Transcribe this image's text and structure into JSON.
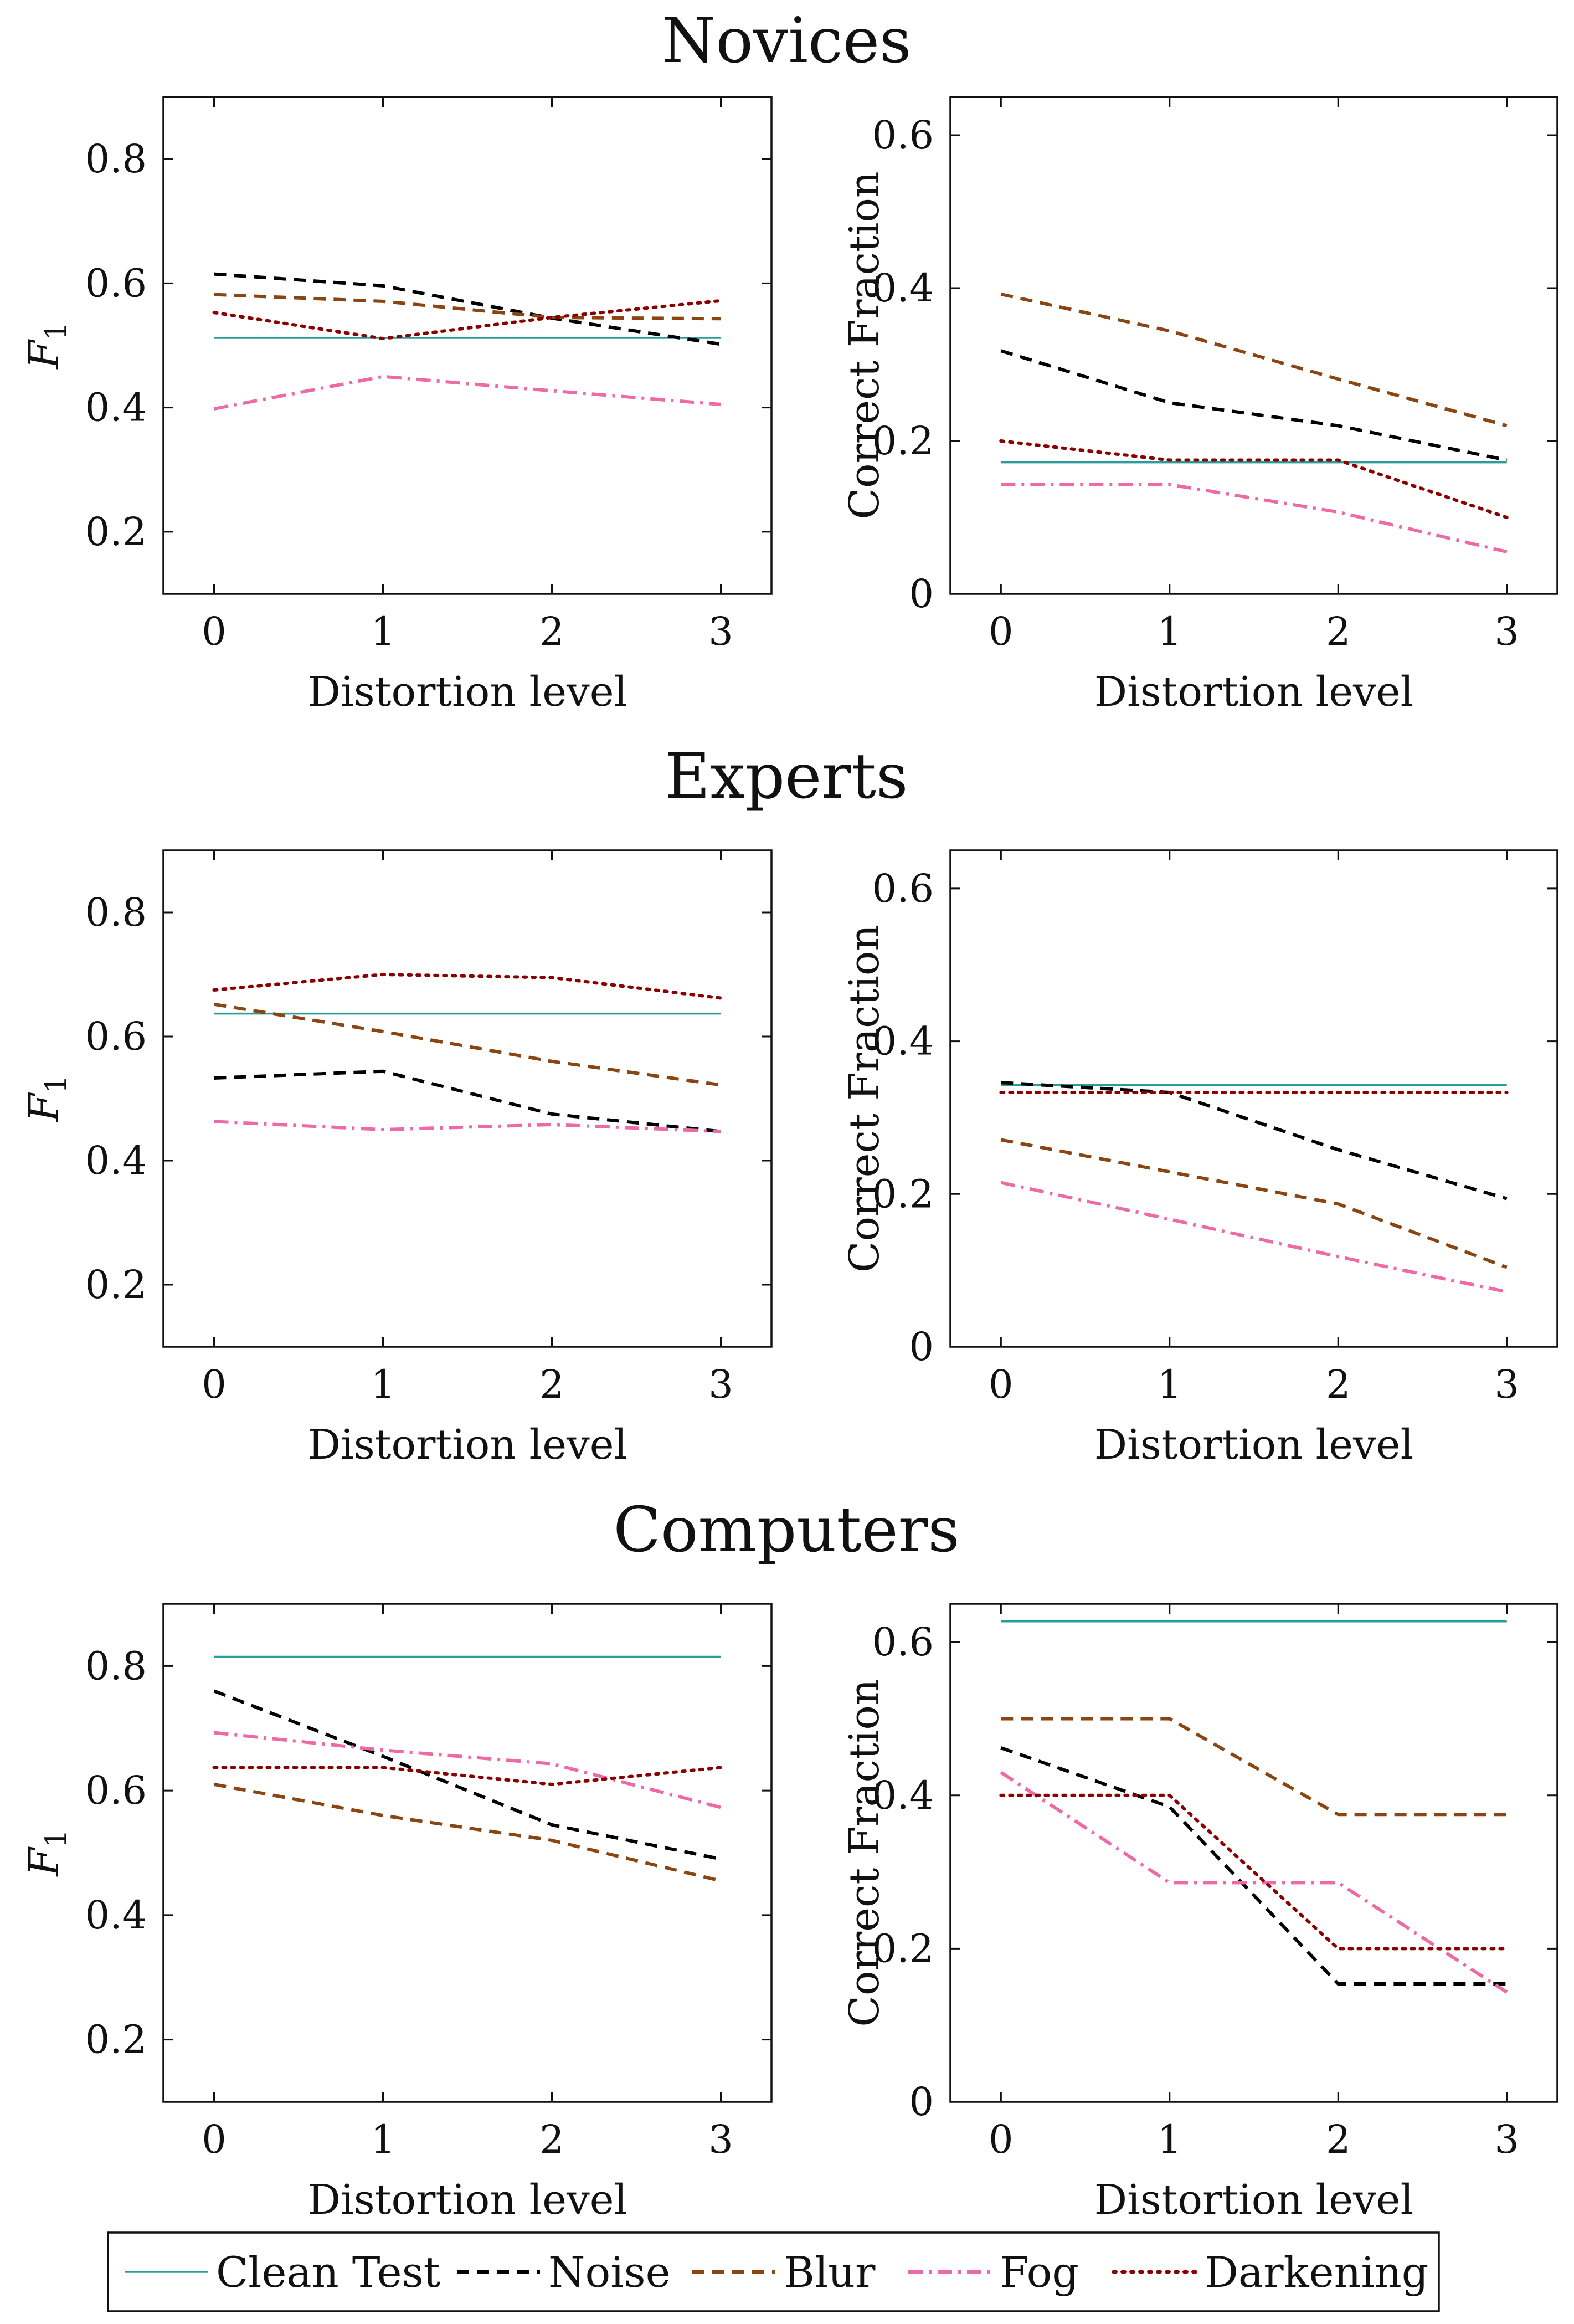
{
  "series_styles": [
    {
      "name": "Clean Test",
      "color": "#2a9d9a",
      "dash": "solid"
    },
    {
      "name": "Noise",
      "color": "#000000",
      "dash": "dashed"
    },
    {
      "name": "Blur",
      "color": "#8b4513",
      "dash": "dashed"
    },
    {
      "name": "Fog",
      "color": "#ee6aa7",
      "dash": "dashdot"
    },
    {
      "name": "Darkening",
      "color": "#8b0000",
      "dash": "dotted"
    }
  ],
  "legend": {
    "entries": [
      "Clean Test",
      "Noise",
      "Blur",
      "Fog",
      "Darkening"
    ]
  },
  "chart_data": [
    {
      "group": "Novices",
      "show_group_title": true,
      "type": "line",
      "xlabel": "Distortion level",
      "ylabel": "F1",
      "x": [
        0,
        1,
        2,
        3
      ],
      "xlim": [
        -0.3,
        3.3
      ],
      "ylim": [
        0.1,
        0.9
      ],
      "yticks": [
        0.2,
        0.4,
        0.6,
        0.8
      ],
      "yticklabels": [
        "0.2",
        "0.4",
        "0.6",
        "0.8"
      ],
      "series": [
        {
          "name": "Clean Test",
          "values": [
            0.512,
            0.512,
            0.512,
            0.512
          ]
        },
        {
          "name": "Noise",
          "values": [
            0.615,
            0.596,
            0.544,
            0.502
          ]
        },
        {
          "name": "Blur",
          "values": [
            0.582,
            0.571,
            0.545,
            0.543
          ]
        },
        {
          "name": "Fog",
          "values": [
            0.398,
            0.45,
            0.427,
            0.405
          ]
        },
        {
          "name": "Darkening",
          "values": [
            0.553,
            0.511,
            0.545,
            0.572
          ]
        }
      ]
    },
    {
      "group": "Novices",
      "show_group_title": false,
      "type": "line",
      "xlabel": "Distortion level",
      "ylabel": "Correct Fraction",
      "x": [
        0,
        1,
        2,
        3
      ],
      "xlim": [
        -0.3,
        3.3
      ],
      "ylim": [
        0,
        0.65
      ],
      "yticks": [
        0,
        0.2,
        0.4,
        0.6
      ],
      "yticklabels": [
        "0",
        "0.2",
        "0.4",
        "0.6"
      ],
      "series": [
        {
          "name": "Clean Test",
          "values": [
            0.172,
            0.172,
            0.172,
            0.172
          ]
        },
        {
          "name": "Noise",
          "values": [
            0.318,
            0.25,
            0.22,
            0.175
          ]
        },
        {
          "name": "Blur",
          "values": [
            0.392,
            0.344,
            0.281,
            0.22
          ]
        },
        {
          "name": "Fog",
          "values": [
            0.143,
            0.143,
            0.107,
            0.055
          ]
        },
        {
          "name": "Darkening",
          "values": [
            0.2,
            0.175,
            0.175,
            0.1
          ]
        }
      ]
    },
    {
      "group": "Experts",
      "show_group_title": true,
      "type": "line",
      "xlabel": "Distortion level",
      "ylabel": "F1",
      "x": [
        0,
        1,
        2,
        3
      ],
      "xlim": [
        -0.3,
        3.3
      ],
      "ylim": [
        0.1,
        0.9
      ],
      "yticks": [
        0.2,
        0.4,
        0.6,
        0.8
      ],
      "yticklabels": [
        "0.2",
        "0.4",
        "0.6",
        "0.8"
      ],
      "series": [
        {
          "name": "Clean Test",
          "values": [
            0.637,
            0.637,
            0.637,
            0.637
          ]
        },
        {
          "name": "Noise",
          "values": [
            0.533,
            0.544,
            0.475,
            0.447
          ]
        },
        {
          "name": "Blur",
          "values": [
            0.652,
            0.608,
            0.56,
            0.522
          ]
        },
        {
          "name": "Fog",
          "values": [
            0.463,
            0.45,
            0.458,
            0.447
          ]
        },
        {
          "name": "Darkening",
          "values": [
            0.675,
            0.7,
            0.695,
            0.662
          ]
        }
      ]
    },
    {
      "group": "Experts",
      "show_group_title": false,
      "type": "line",
      "xlabel": "Distortion level",
      "ylabel": "Correct Fraction",
      "x": [
        0,
        1,
        2,
        3
      ],
      "xlim": [
        -0.3,
        3.3
      ],
      "ylim": [
        0,
        0.65
      ],
      "yticks": [
        0,
        0.2,
        0.4,
        0.6
      ],
      "yticklabels": [
        "0",
        "0.2",
        "0.4",
        "0.6"
      ],
      "series": [
        {
          "name": "Clean Test",
          "values": [
            0.343,
            0.343,
            0.343,
            0.343
          ]
        },
        {
          "name": "Noise",
          "values": [
            0.346,
            0.333,
            0.258,
            0.194
          ]
        },
        {
          "name": "Blur",
          "values": [
            0.271,
            0.229,
            0.187,
            0.104
          ]
        },
        {
          "name": "Fog",
          "values": [
            0.215,
            0.167,
            0.118,
            0.072
          ]
        },
        {
          "name": "Darkening",
          "values": [
            0.333,
            0.333,
            0.333,
            0.333
          ]
        }
      ]
    },
    {
      "group": "Computers",
      "show_group_title": true,
      "type": "line",
      "xlabel": "Distortion level",
      "ylabel": "F1",
      "x": [
        0,
        1,
        2,
        3
      ],
      "xlim": [
        -0.3,
        3.3
      ],
      "ylim": [
        0.1,
        0.9
      ],
      "yticks": [
        0.2,
        0.4,
        0.6,
        0.8
      ],
      "yticklabels": [
        "0.2",
        "0.4",
        "0.6",
        "0.8"
      ],
      "series": [
        {
          "name": "Clean Test",
          "values": [
            0.815,
            0.815,
            0.815,
            0.815
          ]
        },
        {
          "name": "Noise",
          "values": [
            0.76,
            0.655,
            0.545,
            0.49
          ]
        },
        {
          "name": "Blur",
          "values": [
            0.61,
            0.56,
            0.52,
            0.455
          ]
        },
        {
          "name": "Fog",
          "values": [
            0.693,
            0.665,
            0.643,
            0.573
          ]
        },
        {
          "name": "Darkening",
          "values": [
            0.637,
            0.637,
            0.61,
            0.637
          ]
        }
      ]
    },
    {
      "group": "Computers",
      "show_group_title": false,
      "type": "line",
      "xlabel": "Distortion level",
      "ylabel": "Correct Fraction",
      "x": [
        0,
        1,
        2,
        3
      ],
      "xlim": [
        -0.3,
        3.3
      ],
      "ylim": [
        0,
        0.65
      ],
      "yticks": [
        0,
        0.2,
        0.4,
        0.6
      ],
      "yticklabels": [
        "0",
        "0.2",
        "0.4",
        "0.6"
      ],
      "series": [
        {
          "name": "Clean Test",
          "values": [
            0.627,
            0.627,
            0.627,
            0.627
          ]
        },
        {
          "name": "Noise",
          "values": [
            0.462,
            0.385,
            0.154,
            0.154
          ]
        },
        {
          "name": "Blur",
          "values": [
            0.5,
            0.5,
            0.375,
            0.375
          ]
        },
        {
          "name": "Fog",
          "values": [
            0.43,
            0.286,
            0.286,
            0.143
          ]
        },
        {
          "name": "Darkening",
          "values": [
            0.4,
            0.4,
            0.2,
            0.2
          ]
        }
      ]
    }
  ]
}
